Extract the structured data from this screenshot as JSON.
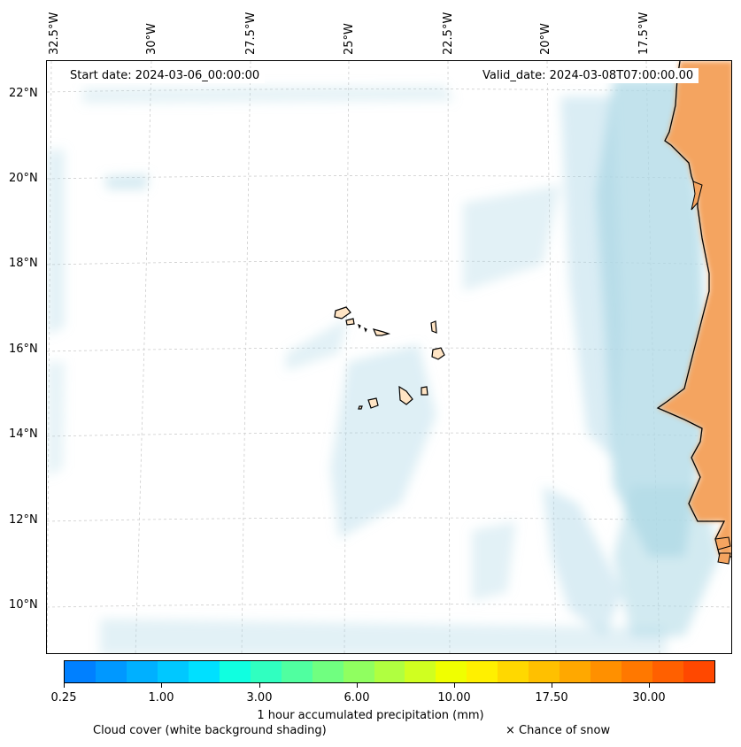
{
  "map": {
    "start_date": "Start date: 2024-03-06_00:00:00",
    "valid_date": "Valid_date: 2024-03-08T07:00:00.00",
    "longitude_labels": [
      "32.5°W",
      "30°W",
      "27.5°W",
      "25°W",
      "22.5°W",
      "20°W",
      "17.5°W"
    ],
    "latitude_labels": [
      "22°N",
      "20°N",
      "18°N",
      "16°N",
      "14°N",
      "12°N",
      "10°N"
    ],
    "islands_region": "Cape Verde",
    "coast_region": "West Africa (Mauritania, Senegal, Gambia, Guinea-Bissau)"
  },
  "colorbar": {
    "title": "1 hour accumulated precipitation (mm)",
    "tick_labels": [
      "0.25",
      "1.00",
      "3.00",
      "6.00",
      "10.00",
      "17.50",
      "30.00"
    ],
    "colors": [
      "#0080ff",
      "#0098ff",
      "#00b0ff",
      "#00c8ff",
      "#00e0ff",
      "#10ffe0",
      "#30ffc0",
      "#50ffa0",
      "#70ff80",
      "#90ff60",
      "#b0ff40",
      "#d0ff20",
      "#f0ff00",
      "#fff000",
      "#ffd800",
      "#ffc000",
      "#ffa800",
      "#ff9000",
      "#ff7800",
      "#ff6000",
      "#ff4800"
    ]
  },
  "legend": {
    "cloud_cover": "Cloud cover (white background shading)",
    "snow": "× Chance of snow"
  }
}
